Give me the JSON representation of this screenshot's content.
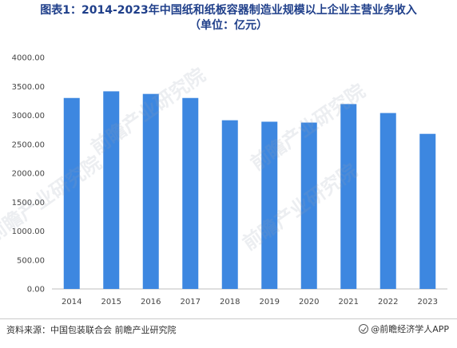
{
  "chart_data": {
    "type": "bar",
    "title": "图表1：2014-2023年中国纸和纸板容器制造业规模以上企业主营业务收入",
    "subtitle": "（单位：亿元）",
    "categories": [
      "2014",
      "2015",
      "2016",
      "2017",
      "2018",
      "2019",
      "2020",
      "2021",
      "2022",
      "2023"
    ],
    "values": [
      3300,
      3415,
      3370,
      3300,
      2915,
      2890,
      2875,
      3195,
      3040,
      2680
    ],
    "ylim": [
      0,
      4000
    ],
    "yticks": [
      "0.00",
      "500.00",
      "1000.00",
      "1500.00",
      "2000.00",
      "2500.00",
      "3000.00",
      "3500.00",
      "4000.00"
    ],
    "xlabel": "",
    "ylabel": "",
    "grid": false,
    "bar_color": "#3d87e0"
  },
  "footer": {
    "source": "资料来源：中国包装联合会 前瞻产业研究院",
    "brand": "@前瞻经济学人APP"
  },
  "watermark": {
    "text": "前瞻产业研究院"
  }
}
